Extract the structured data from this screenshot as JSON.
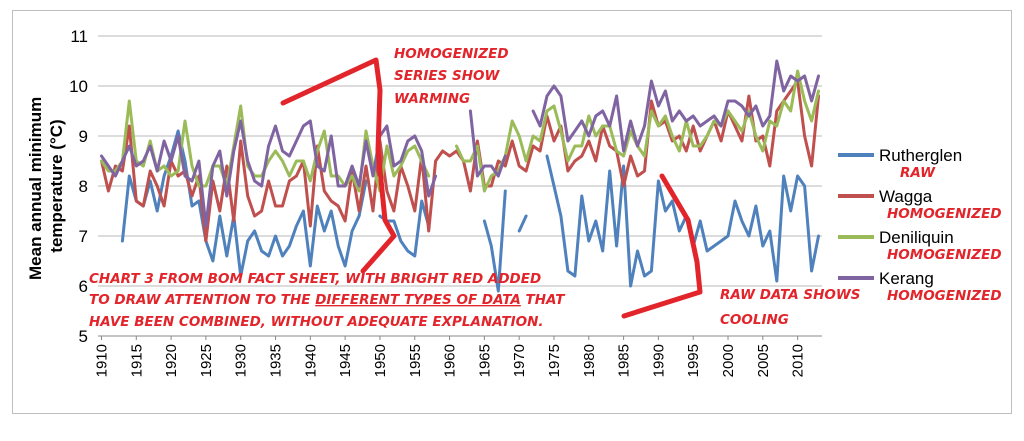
{
  "chart_data": {
    "type": "line",
    "title": "",
    "ylabel": "Mean annual minimum temperature (°C)",
    "xlabel": "",
    "ylim": [
      5,
      11
    ],
    "yticks": [
      5,
      6,
      7,
      8,
      9,
      10,
      11
    ],
    "xticks": [
      1910,
      1915,
      1920,
      1925,
      1930,
      1935,
      1940,
      1945,
      1950,
      1955,
      1960,
      1965,
      1970,
      1975,
      1980,
      1985,
      1990,
      1995,
      2000,
      2005,
      2010
    ],
    "xlim": [
      1909.5,
      2013.5
    ],
    "grid": true,
    "legend_position": "right",
    "series": [
      {
        "name": "Rutherglen",
        "tag": "RAW",
        "color": "#4f81bd",
        "x": [
          1913,
          1914,
          1915,
          1916,
          1917,
          1918,
          1919,
          1920,
          1921,
          1922,
          1923,
          1924,
          1925,
          1926,
          1927,
          1928,
          1929,
          1930,
          1931,
          1932,
          1933,
          1934,
          1935,
          1936,
          1937,
          1938,
          1939,
          1940,
          1941,
          1942,
          1943,
          1944,
          1945,
          1946,
          1947,
          1948,
          1950,
          1951,
          1952,
          1953,
          1954,
          1955,
          1956,
          1957,
          1965,
          1966,
          1967,
          1968,
          1970,
          1971,
          1974,
          1975,
          1976,
          1977,
          1978,
          1979,
          1980,
          1981,
          1982,
          1983,
          1984,
          1985,
          1986,
          1987,
          1988,
          1989,
          1990,
          1991,
          1992,
          1993,
          1994,
          1995,
          1996,
          1997,
          1998,
          1999,
          2000,
          2001,
          2002,
          2003,
          2004,
          2005,
          2006,
          2007,
          2008,
          2009,
          2010,
          2011,
          2012,
          2013
        ],
        "values": [
          6.9,
          8.2,
          7.7,
          7.6,
          8.1,
          7.5,
          8.2,
          8.6,
          9.1,
          8.5,
          7.6,
          7.7,
          6.9,
          6.5,
          7.4,
          6.6,
          7.4,
          6.2,
          6.9,
          7.1,
          6.7,
          6.6,
          7.0,
          6.6,
          6.8,
          7.2,
          7.5,
          6.4,
          7.6,
          7.1,
          7.5,
          6.8,
          6.4,
          7.1,
          7.4,
          8.1,
          7.4,
          7.3,
          7.3,
          6.9,
          6.7,
          6.6,
          7.7,
          7.2,
          7.3,
          6.8,
          5.9,
          7.9,
          7.1,
          7.4,
          8.6,
          8.0,
          7.4,
          6.3,
          6.2,
          7.8,
          6.9,
          7.3,
          6.7,
          8.3,
          6.8,
          8.4,
          6.0,
          6.7,
          6.2,
          6.3,
          8.1,
          7.5,
          7.7,
          7.1,
          7.4,
          6.8,
          7.3,
          6.7,
          6.8,
          6.9,
          7.0,
          7.7,
          7.3,
          7.0,
          7.6,
          6.8,
          7.1,
          6.1,
          8.2,
          7.5,
          8.2,
          8.0,
          6.3,
          7.0
        ]
      },
      {
        "name": "Wagga",
        "tag": "HOMOGENIZED",
        "color": "#c0504d",
        "x": [
          1910,
          1911,
          1912,
          1913,
          1914,
          1915,
          1916,
          1917,
          1918,
          1919,
          1920,
          1921,
          1922,
          1923,
          1924,
          1925,
          1926,
          1927,
          1928,
          1929,
          1930,
          1931,
          1932,
          1933,
          1934,
          1935,
          1936,
          1937,
          1938,
          1939,
          1940,
          1941,
          1942,
          1943,
          1944,
          1945,
          1946,
          1947,
          1948,
          1949,
          1950,
          1951,
          1952,
          1953,
          1954,
          1955,
          1956,
          1957,
          1958,
          1959,
          1960,
          1961,
          1962,
          1963,
          1964,
          1965,
          1966,
          1967,
          1968,
          1969,
          1970,
          1971,
          1972,
          1973,
          1974,
          1975,
          1976,
          1977,
          1978,
          1979,
          1980,
          1981,
          1982,
          1983,
          1984,
          1985,
          1986,
          1987,
          1988,
          1989,
          1990,
          1991,
          1992,
          1993,
          1994,
          1995,
          1996,
          1997,
          1998,
          1999,
          2000,
          2001,
          2002,
          2003,
          2004,
          2005,
          2006,
          2007,
          2008,
          2009,
          2010,
          2011,
          2012,
          2013
        ],
        "values": [
          8.5,
          7.9,
          8.4,
          8.3,
          9.2,
          7.7,
          7.6,
          8.3,
          8.0,
          7.6,
          8.5,
          8.2,
          8.3,
          7.8,
          8.2,
          6.9,
          8.1,
          7.5,
          8.4,
          7.3,
          8.9,
          7.8,
          7.4,
          7.5,
          8.1,
          7.6,
          7.6,
          8.1,
          8.2,
          8.5,
          7.2,
          8.8,
          7.9,
          7.7,
          7.6,
          7.3,
          8.3,
          7.5,
          8.4,
          7.5,
          8.9,
          7.9,
          7.5,
          8.4,
          8.0,
          7.5,
          8.6,
          7.1,
          8.5,
          8.7,
          8.6,
          8.7,
          8.5,
          7.9,
          8.9,
          8.0,
          8.0,
          8.5,
          8.4,
          8.9,
          8.4,
          8.3,
          8.8,
          8.7,
          9.4,
          8.9,
          9.2,
          8.3,
          8.5,
          8.6,
          8.9,
          8.5,
          9.2,
          8.8,
          8.7,
          8.0,
          8.6,
          8.2,
          8.3,
          9.7,
          9.2,
          9.3,
          8.9,
          9.0,
          8.7,
          9.2,
          8.7,
          9.0,
          9.3,
          8.9,
          9.5,
          9.2,
          8.9,
          9.8,
          8.9,
          9.0,
          8.4,
          9.5,
          9.7,
          9.9,
          10.1,
          9.0,
          8.4,
          9.8
        ]
      },
      {
        "name": "Deniliquin",
        "tag": "HOMOGENIZED",
        "color": "#9bbb59",
        "x": [
          1910,
          1911,
          1912,
          1913,
          1914,
          1915,
          1916,
          1917,
          1918,
          1919,
          1920,
          1921,
          1922,
          1923,
          1924,
          1925,
          1926,
          1927,
          1928,
          1929,
          1930,
          1931,
          1932,
          1933,
          1934,
          1935,
          1936,
          1937,
          1938,
          1939,
          1940,
          1941,
          1942,
          1943,
          1944,
          1945,
          1946,
          1947,
          1948,
          1949,
          1950,
          1951,
          1952,
          1953,
          1954,
          1955,
          1956,
          1957,
          1961,
          1962,
          1963,
          1964,
          1965,
          1966,
          1967,
          1968,
          1969,
          1970,
          1971,
          1972,
          1973,
          1974,
          1975,
          1976,
          1977,
          1978,
          1979,
          1980,
          1981,
          1982,
          1983,
          1984,
          1985,
          1986,
          1987,
          1988,
          1989,
          1990,
          1991,
          1992,
          1993,
          1994,
          1995,
          1996,
          1997,
          1998,
          1999,
          2000,
          2001,
          2002,
          2003,
          2004,
          2005,
          2006,
          2007,
          2008,
          2009,
          2010,
          2011,
          2012,
          2013
        ],
        "values": [
          8.5,
          8.3,
          8.3,
          8.5,
          9.7,
          8.5,
          8.4,
          8.9,
          8.3,
          8.4,
          8.2,
          8.3,
          9.3,
          8.4,
          8.0,
          8.0,
          8.4,
          8.4,
          8.0,
          8.8,
          9.6,
          8.4,
          8.2,
          8.2,
          8.5,
          8.7,
          8.5,
          8.2,
          8.5,
          8.5,
          8.1,
          8.7,
          9.1,
          8.2,
          8.2,
          8.0,
          8.2,
          7.9,
          9.1,
          8.4,
          7.9,
          8.8,
          8.2,
          8.4,
          8.7,
          8.8,
          8.5,
          8.2,
          8.8,
          8.5,
          8.5,
          8.8,
          7.9,
          8.2,
          8.3,
          8.6,
          9.3,
          9.0,
          8.5,
          9.0,
          8.9,
          9.5,
          9.6,
          9.1,
          8.5,
          8.8,
          8.8,
          9.4,
          9.0,
          9.2,
          9.2,
          8.7,
          8.6,
          9.1,
          8.8,
          8.6,
          9.5,
          9.2,
          9.4,
          9.0,
          8.7,
          9.3,
          8.8,
          8.8,
          9.0,
          9.3,
          9.2,
          9.5,
          9.3,
          9.1,
          9.5,
          9.0,
          8.7,
          9.3,
          9.2,
          9.7,
          9.5,
          10.3,
          9.7,
          9.3,
          9.9
        ]
      },
      {
        "name": "Kerang",
        "tag": "HOMOGENIZED",
        "color": "#8064a2",
        "x": [
          1910,
          1911,
          1912,
          1913,
          1914,
          1915,
          1916,
          1917,
          1918,
          1919,
          1920,
          1921,
          1922,
          1923,
          1924,
          1925,
          1926,
          1927,
          1928,
          1929,
          1930,
          1931,
          1932,
          1933,
          1934,
          1935,
          1936,
          1937,
          1938,
          1939,
          1940,
          1941,
          1942,
          1943,
          1944,
          1945,
          1946,
          1947,
          1948,
          1949,
          1950,
          1951,
          1952,
          1953,
          1954,
          1955,
          1956,
          1957,
          1958,
          1963,
          1964,
          1965,
          1966,
          1967,
          1968,
          1972,
          1973,
          1974,
          1975,
          1976,
          1977,
          1978,
          1979,
          1980,
          1981,
          1982,
          1983,
          1984,
          1985,
          1986,
          1987,
          1988,
          1989,
          1990,
          1991,
          1992,
          1993,
          1994,
          1995,
          1996,
          1997,
          1998,
          1999,
          2000,
          2001,
          2002,
          2003,
          2004,
          2005,
          2006,
          2007,
          2008,
          2009,
          2010,
          2011,
          2012,
          2013
        ],
        "values": [
          8.6,
          8.4,
          8.2,
          8.5,
          8.8,
          8.4,
          8.5,
          8.8,
          8.3,
          8.9,
          8.5,
          9.0,
          8.2,
          8.1,
          8.5,
          7.2,
          8.4,
          8.7,
          7.8,
          8.7,
          9.3,
          8.5,
          8.1,
          8.0,
          8.8,
          9.2,
          8.7,
          8.6,
          8.9,
          9.2,
          9.3,
          8.4,
          8.3,
          9.0,
          8.0,
          8.0,
          8.4,
          8.0,
          8.9,
          8.2,
          9.0,
          9.2,
          8.4,
          8.5,
          8.9,
          9.0,
          8.7,
          7.8,
          8.2,
          9.5,
          8.2,
          8.4,
          8.4,
          8.2,
          8.6,
          9.5,
          9.2,
          9.8,
          10.0,
          9.8,
          8.9,
          9.1,
          9.3,
          9.0,
          9.4,
          9.5,
          9.2,
          9.8,
          8.7,
          9.3,
          8.8,
          9.2,
          10.1,
          9.6,
          9.9,
          9.3,
          9.5,
          9.3,
          9.4,
          9.2,
          9.3,
          9.4,
          9.2,
          9.7,
          9.7,
          9.6,
          9.4,
          9.6,
          9.2,
          9.4,
          10.5,
          9.9,
          10.2,
          10.1,
          10.2,
          9.7,
          10.2
        ]
      }
    ]
  },
  "legend_tags": {
    "rutherglen": "RAW",
    "wagga": "HOMOGENIZED",
    "deniliquin": "HOMOGENIZED",
    "kerang": "HOMOGENIZED"
  },
  "annotations": {
    "homogenized_l1": "HOMOGENIZED",
    "homogenized_l2": "SERIES SHOW",
    "homogenized_l3": "WARMING",
    "raw_l1": "RAW DATA SHOWS",
    "raw_l2": "COOLING",
    "note_l1": "CHART 3 FROM BOM FACT SHEET, WITH BRIGHT RED ADDED",
    "note_l2a": "TO DRAW ATTENTION TO THE ",
    "note_l2b": "DIFFERENT TYPES OF DATA",
    "note_l2c": " THAT",
    "note_l3": "HAVE BEEN COMBINED, WITHOUT ADEQUATE EXPLANATION.",
    "color": "#e2242b"
  }
}
